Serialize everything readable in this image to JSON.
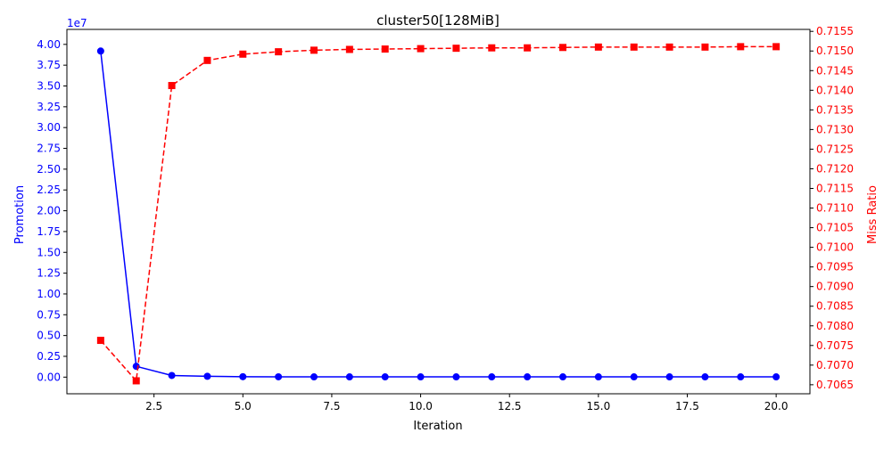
{
  "chart_data": {
    "type": "line",
    "title": "cluster50[128MiB]",
    "xlabel": "Iteration",
    "ylabel_left": "Promotion",
    "ylabel_right": "Miss Ratio",
    "left_offset_label": "1e7",
    "xlim": [
      0.05,
      20.95
    ],
    "ylim_left": [
      -0.2,
      4.18
    ],
    "ylim_right": [
      0.70627,
      0.71555
    ],
    "x_ticks": [
      2.5,
      5.0,
      7.5,
      10.0,
      12.5,
      15.0,
      17.5,
      20.0
    ],
    "x_tick_labels": [
      "2.5",
      "5.0",
      "7.5",
      "10.0",
      "12.5",
      "15.0",
      "17.5",
      "20.0"
    ],
    "left_ticks": [
      0,
      0.25,
      0.5,
      0.75,
      1.0,
      1.25,
      1.5,
      1.75,
      2.0,
      2.25,
      2.5,
      2.75,
      3.0,
      3.25,
      3.5,
      3.75,
      4.0
    ],
    "left_tick_labels": [
      "0.00",
      "0.25",
      "0.50",
      "0.75",
      "1.00",
      "1.25",
      "1.50",
      "1.75",
      "2.00",
      "2.25",
      "2.50",
      "2.75",
      "3.00",
      "3.25",
      "3.50",
      "3.75",
      "4.00"
    ],
    "right_ticks": [
      0.7065,
      0.707,
      0.7075,
      0.708,
      0.7085,
      0.709,
      0.7095,
      0.71,
      0.7105,
      0.711,
      0.7115,
      0.712,
      0.7125,
      0.713,
      0.7135,
      0.714,
      0.7145,
      0.715,
      0.7155
    ],
    "right_tick_labels": [
      "0.7065",
      "0.7070",
      "0.7075",
      "0.7080",
      "0.7085",
      "0.7090",
      "0.7095",
      "0.7100",
      "0.7105",
      "0.7110",
      "0.7115",
      "0.7120",
      "0.7125",
      "0.7130",
      "0.7135",
      "0.7140",
      "0.7145",
      "0.7150",
      "0.7155"
    ],
    "grid": false,
    "x": [
      1,
      2,
      3,
      4,
      5,
      6,
      7,
      8,
      9,
      10,
      11,
      12,
      13,
      14,
      15,
      16,
      17,
      18,
      19,
      20
    ],
    "series": [
      {
        "axis": "left",
        "color": "#0000ff",
        "marker": "circle",
        "linestyle": "solid",
        "values": [
          3.92,
          0.13,
          0.02,
          0.01,
          0.005,
          0.004,
          0.003,
          0.003,
          0.003,
          0.003,
          0.003,
          0.003,
          0.003,
          0.003,
          0.003,
          0.003,
          0.003,
          0.003,
          0.003,
          0.003
        ]
      },
      {
        "axis": "right",
        "color": "#ff0000",
        "marker": "square",
        "linestyle": "dashed",
        "values": [
          0.70763,
          0.7066,
          0.71412,
          0.71476,
          0.71492,
          0.71498,
          0.71502,
          0.71504,
          0.71505,
          0.71506,
          0.71507,
          0.71508,
          0.71508,
          0.71509,
          0.7151,
          0.7151,
          0.7151,
          0.7151,
          0.71511,
          0.71511
        ]
      }
    ]
  }
}
